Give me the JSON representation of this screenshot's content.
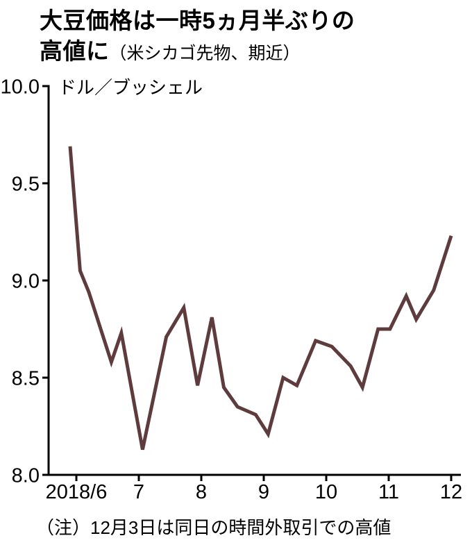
{
  "header": {
    "title_line1": "大豆価格は一時5ヵ月半ぶりの",
    "title_line2": "高値に",
    "subtitle": "（米シカゴ先物、期近）"
  },
  "chart_data": {
    "type": "line",
    "title": "大豆価格は一時5ヵ月半ぶりの高値に",
    "subtitle": "（米シカゴ先物、期近）",
    "unit_label": "ドル／ブッシェル",
    "xlabel": "",
    "ylabel": "ドル／ブッシェル",
    "ylim": [
      8.0,
      10.0
    ],
    "xlim": [
      5.8,
      12.15
    ],
    "grid": false,
    "legend": "none",
    "line_color": "#5e3c3e",
    "axis_color": "#000000",
    "y_ticks": [
      {
        "value": 10.0,
        "label": "10.0"
      },
      {
        "value": 9.5,
        "label": "9.5"
      },
      {
        "value": 9.0,
        "label": "9.0"
      },
      {
        "value": 8.5,
        "label": "8.5"
      },
      {
        "value": 8.0,
        "label": "8.0"
      }
    ],
    "x_ticks": [
      {
        "value": 6,
        "label": "2018/6"
      },
      {
        "value": 7,
        "label": "7"
      },
      {
        "value": 8,
        "label": "8"
      },
      {
        "value": 9,
        "label": "9"
      },
      {
        "value": 10,
        "label": "10"
      },
      {
        "value": 11,
        "label": "11"
      },
      {
        "value": 12,
        "label": "12"
      }
    ],
    "series": [
      {
        "name": "大豆価格（米シカゴ先物、期近）",
        "points": [
          [
            5.9,
            9.69
          ],
          [
            6.06,
            9.05
          ],
          [
            6.2,
            8.94
          ],
          [
            6.56,
            8.58
          ],
          [
            6.72,
            8.73
          ],
          [
            7.06,
            8.13
          ],
          [
            7.44,
            8.71
          ],
          [
            7.72,
            8.86
          ],
          [
            7.94,
            8.46
          ],
          [
            8.17,
            8.81
          ],
          [
            8.36,
            8.45
          ],
          [
            8.58,
            8.35
          ],
          [
            8.87,
            8.31
          ],
          [
            9.07,
            8.21
          ],
          [
            9.31,
            8.5
          ],
          [
            9.53,
            8.46
          ],
          [
            9.83,
            8.69
          ],
          [
            10.09,
            8.66
          ],
          [
            10.39,
            8.56
          ],
          [
            10.58,
            8.45
          ],
          [
            10.83,
            8.75
          ],
          [
            11.02,
            8.75
          ],
          [
            11.28,
            8.92
          ],
          [
            11.44,
            8.8
          ],
          [
            11.72,
            8.95
          ],
          [
            12.0,
            9.23
          ]
        ]
      }
    ],
    "note": "（注）12月3日は同日の時間外取引での高値"
  }
}
